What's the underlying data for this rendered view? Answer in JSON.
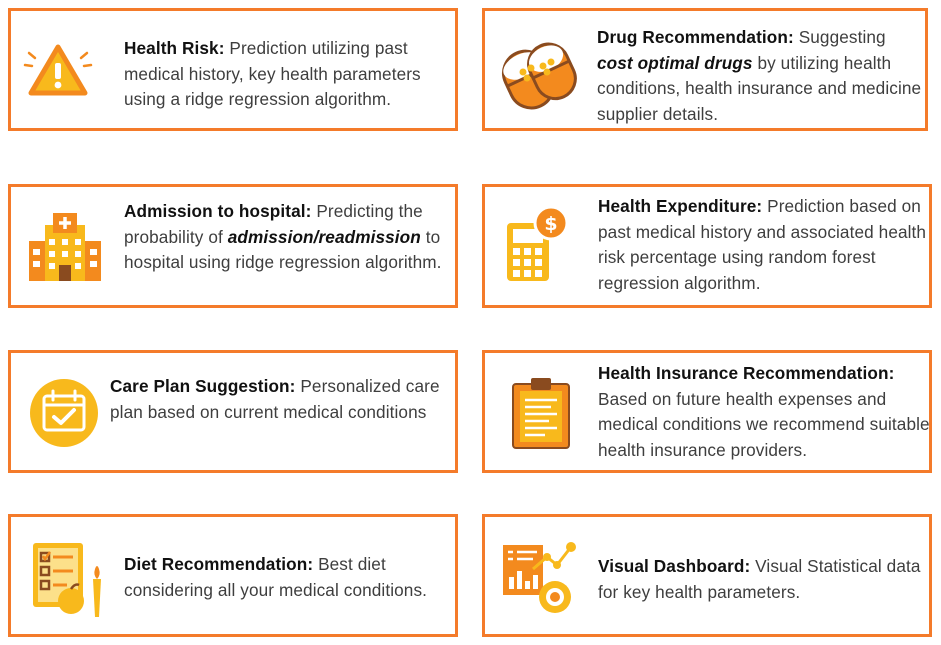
{
  "colors": {
    "border": "#f47b2a",
    "icon_yellow": "#f8b91c",
    "icon_orange": "#f38a1e",
    "icon_brown": "#8a4b1f"
  },
  "cards": [
    {
      "id": "health-risk",
      "icon": "warning-icon",
      "title": "Health Risk:",
      "body": " Prediction utilizing past medical history, key health parameters using a ridge regression algorithm."
    },
    {
      "id": "drug-recommendation",
      "icon": "pills-icon",
      "title": "Drug Recommendation:",
      "body_a": " Suggesting ",
      "emphasis": "cost optimal drugs",
      "body_b": " by utilizing health conditions, health insurance and medicine supplier details."
    },
    {
      "id": "admission-to-hospital",
      "icon": "hospital-icon",
      "title": "Admission to hospital:",
      "body_a": " Predicting the probability of ",
      "emphasis": "admission/readmission",
      "body_b": " to hospital using ridge regression algorithm."
    },
    {
      "id": "health-expenditure",
      "icon": "calculator-dollar-icon",
      "title": "Health Expenditure:",
      "body": " Prediction based on past medical history and associated health risk percentage using random forest regression algorithm."
    },
    {
      "id": "care-plan-suggestion",
      "icon": "calendar-check-icon",
      "title": "Care Plan Suggestion:",
      "body": " Personalized care plan based on current medical conditions"
    },
    {
      "id": "health-insurance-recommendation",
      "icon": "clipboard-icon",
      "title": "Health Insurance Recommendation:",
      "body": " Based on future health expenses and medical conditions we recommend suitable health insurance providers."
    },
    {
      "id": "diet-recommendation",
      "icon": "diet-checklist-icon",
      "title": "Diet Recommendation:",
      "body": " Best diet considering all your medical conditions."
    },
    {
      "id": "visual-dashboard",
      "icon": "dashboard-chart-icon",
      "title": "Visual Dashboard:",
      "body": "  Visual Statistical data for key health parameters."
    }
  ]
}
